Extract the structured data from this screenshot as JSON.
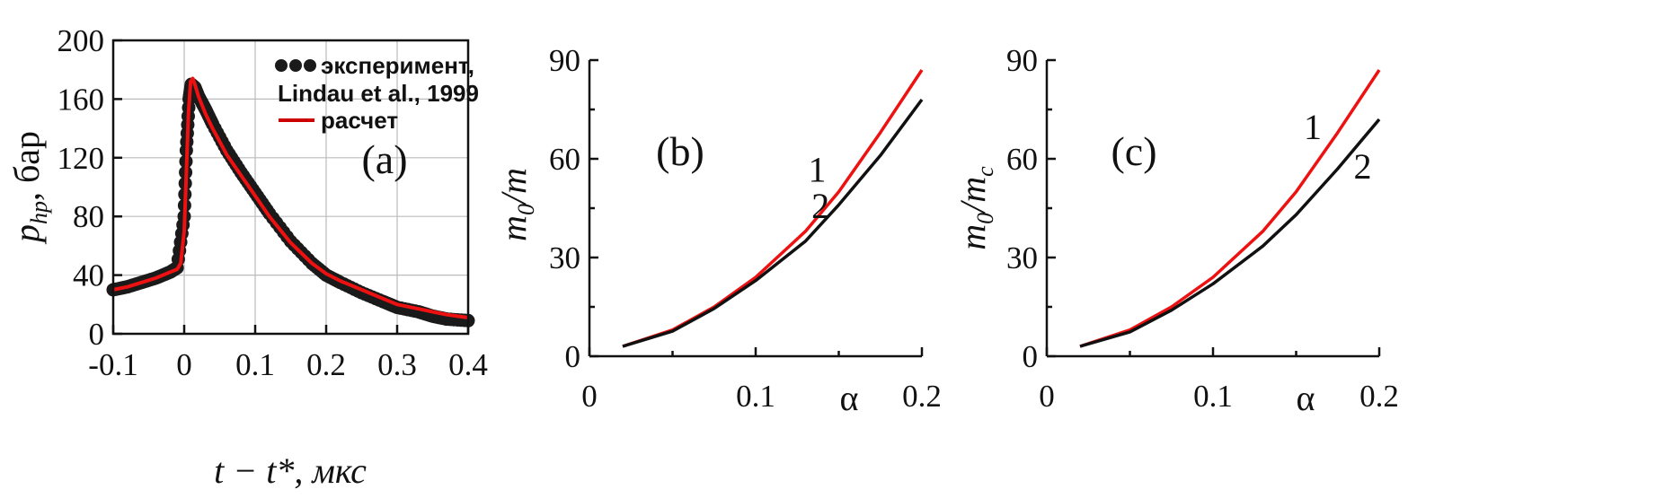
{
  "colors": {
    "red": "#ee1111",
    "black": "#111111",
    "dots": "#1a1a1a"
  },
  "chart_data": [
    {
      "panel": "a",
      "type": "line",
      "panel_label": "(a)",
      "xlabel": "t − t*, мкс",
      "ylabel_main": "p",
      "ylabel_sub": "hp",
      "ylabel_unit": ", бар",
      "xlim": [
        -0.1,
        0.4
      ],
      "ylim": [
        0,
        200
      ],
      "xticks": [
        "-0.1",
        "0",
        "0.1",
        "0.2",
        "0.3",
        "0.4"
      ],
      "yticks": [
        "0",
        "40",
        "80",
        "120",
        "160",
        "200"
      ],
      "grid": true,
      "legend": "top-right",
      "series": [
        {
          "name": "эксперимент,",
          "name_line2": "Lindau et al., 1999",
          "style": "dots",
          "x": [
            -0.1,
            -0.08,
            -0.06,
            -0.04,
            -0.02,
            -0.01,
            0.0,
            0.003,
            0.007,
            0.01,
            0.015,
            0.02,
            0.03,
            0.04,
            0.06,
            0.08,
            0.1,
            0.12,
            0.15,
            0.18,
            0.2,
            0.22,
            0.25,
            0.28,
            0.3,
            0.33,
            0.35,
            0.37,
            0.4
          ],
          "y": [
            30,
            32,
            35,
            38,
            42,
            45,
            80,
            125,
            160,
            170,
            168,
            162,
            153,
            143,
            125,
            110,
            96,
            82,
            63,
            48,
            40,
            35,
            28,
            22,
            18,
            15,
            12,
            10,
            9
          ]
        },
        {
          "name": "расчет",
          "style": "line",
          "x": [
            -0.1,
            -0.08,
            -0.06,
            -0.04,
            -0.02,
            -0.01,
            -0.005,
            0.0,
            0.003,
            0.006,
            0.009,
            0.012,
            0.015,
            0.02,
            0.03,
            0.04,
            0.06,
            0.08,
            0.1,
            0.12,
            0.15,
            0.18,
            0.2,
            0.22,
            0.25,
            0.28,
            0.3,
            0.33,
            0.35,
            0.37,
            0.4
          ],
          "y": [
            30,
            32,
            35,
            38,
            42,
            44,
            48,
            70,
            110,
            150,
            172,
            174,
            170,
            162,
            150,
            140,
            122,
            108,
            94,
            80,
            62,
            48,
            41,
            36,
            30,
            24,
            20,
            17,
            15,
            13,
            11
          ]
        }
      ]
    },
    {
      "panel": "b",
      "type": "line",
      "panel_label": "(b)",
      "xlabel": "α",
      "ylabel_main": "m",
      "ylabel_sub": "0",
      "ylabel_unit": "/m",
      "ylabel_unit_sub": "",
      "xlim": [
        0,
        0.2
      ],
      "ylim": [
        0,
        90
      ],
      "xticks": [
        "0",
        "0.1",
        "0.2"
      ],
      "yticks": [
        "0",
        "30",
        "60",
        "90"
      ],
      "grid": false,
      "series": [
        {
          "name": "1",
          "color": "red",
          "x": [
            0.02,
            0.05,
            0.075,
            0.1,
            0.13,
            0.15,
            0.175,
            0.2
          ],
          "y": [
            3,
            8,
            15,
            24,
            38,
            50,
            68,
            87
          ]
        },
        {
          "name": "2",
          "color": "black",
          "x": [
            0.02,
            0.05,
            0.075,
            0.1,
            0.13,
            0.15,
            0.175,
            0.2
          ],
          "y": [
            3,
            7.6,
            14.5,
            23,
            35,
            46,
            61,
            78
          ]
        }
      ],
      "curve_labels": [
        {
          "text": "1",
          "x": 0.137,
          "y": 53
        },
        {
          "text": "2",
          "x": 0.139,
          "y": 42
        }
      ]
    },
    {
      "panel": "c",
      "type": "line",
      "panel_label": "(c)",
      "xlabel": "α",
      "ylabel_main": "m",
      "ylabel_sub": "0",
      "ylabel_unit": "/m",
      "ylabel_unit_sub": "c",
      "xlim": [
        0,
        0.2
      ],
      "ylim": [
        0,
        90
      ],
      "xticks": [
        "0",
        "0.1",
        "0.2"
      ],
      "yticks": [
        "0",
        "30",
        "60",
        "90"
      ],
      "grid": false,
      "series": [
        {
          "name": "1",
          "color": "red",
          "x": [
            0.02,
            0.05,
            0.075,
            0.1,
            0.13,
            0.15,
            0.175,
            0.2
          ],
          "y": [
            3,
            8,
            15,
            24,
            38,
            50,
            68,
            87
          ]
        },
        {
          "name": "2",
          "color": "black",
          "x": [
            0.02,
            0.05,
            0.075,
            0.1,
            0.13,
            0.15,
            0.175,
            0.2
          ],
          "y": [
            3,
            7.4,
            14,
            22,
            33.5,
            43,
            57,
            72
          ]
        }
      ],
      "curve_labels": [
        {
          "text": "1",
          "x": 0.16,
          "y": 66
        },
        {
          "text": "2",
          "x": 0.19,
          "y": 54
        }
      ]
    }
  ]
}
